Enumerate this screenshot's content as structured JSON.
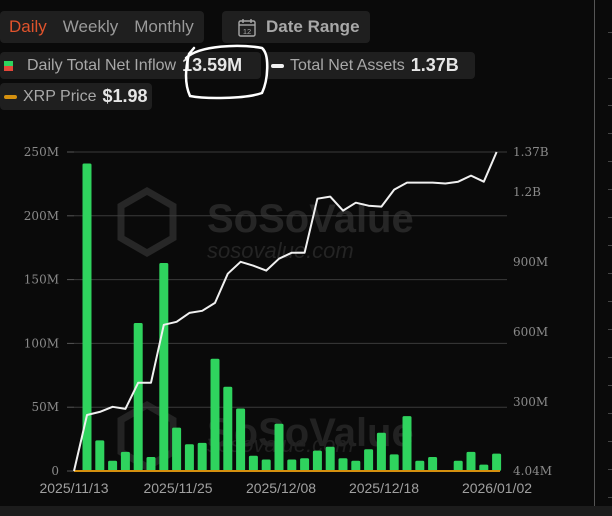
{
  "tabs": [
    {
      "label": "Daily",
      "active": true
    },
    {
      "label": "Weekly",
      "active": false
    },
    {
      "label": "Monthly",
      "active": false
    }
  ],
  "date_range": {
    "label": "Date Range",
    "icon": "calendar-icon",
    "icon_text": "12"
  },
  "legend": {
    "inflow": {
      "label": "Daily Total Net Inflow",
      "value": "13.59M",
      "colors": [
        "#2fd35e",
        "#e5473a"
      ]
    },
    "assets": {
      "label": "Total Net Assets",
      "value": "1.37B",
      "color": "#ffffff"
    },
    "price": {
      "label": "XRP Price",
      "value": "$1.98",
      "color": "#d4900f"
    }
  },
  "watermark": {
    "brand": "SoSoValue",
    "site": "sosovalue.com"
  },
  "colors": {
    "bar": "#2fd35e",
    "line": "#f0f0f0",
    "price": "#d4900f",
    "active_tab": "#e0532c"
  },
  "chart_data": {
    "type": "bar",
    "title": "XRP Spot ETF Daily Total Net Inflow",
    "left_axis": {
      "label": "Daily Total Net Inflow",
      "ticks": [
        "0",
        "50M",
        "100M",
        "150M",
        "200M",
        "250M"
      ],
      "range": [
        0,
        250000000
      ]
    },
    "right_axis": {
      "label": "Total Net Assets",
      "ticks": [
        "4.04M",
        "300M",
        "600M",
        "900M",
        "1.2B",
        "1.37B"
      ],
      "range": [
        4040000,
        1370000000
      ]
    },
    "x_tick_labels": [
      "2025/11/13",
      "2025/11/25",
      "2025/12/08",
      "2025/12/18",
      "2026/01/02"
    ],
    "grid": true,
    "legend_position": "top",
    "series": [
      {
        "name": "Daily Total Net Inflow (M)",
        "type": "bar",
        "values": [
          241,
          24,
          8,
          15,
          116,
          11,
          163,
          34,
          21,
          22,
          88,
          66,
          49,
          12,
          9,
          37,
          9,
          10,
          16,
          19,
          10,
          8,
          17,
          30,
          13,
          43,
          8,
          11,
          0,
          8,
          15,
          5,
          13.59
        ]
      },
      {
        "name": "Total Net Assets (M)",
        "type": "line",
        "values": [
          4.04,
          244,
          257,
          279,
          270,
          382,
          382,
          630,
          643,
          681,
          690,
          724,
          849,
          900,
          883,
          862,
          913,
          939,
          939,
          1170,
          1179,
          1119,
          1153,
          1140,
          1136,
          1209,
          1239,
          1239,
          1239,
          1235,
          1243,
          1269,
          1243,
          1370
        ]
      },
      {
        "name": "XRP Price",
        "type": "line",
        "latest": 1.98
      }
    ]
  }
}
